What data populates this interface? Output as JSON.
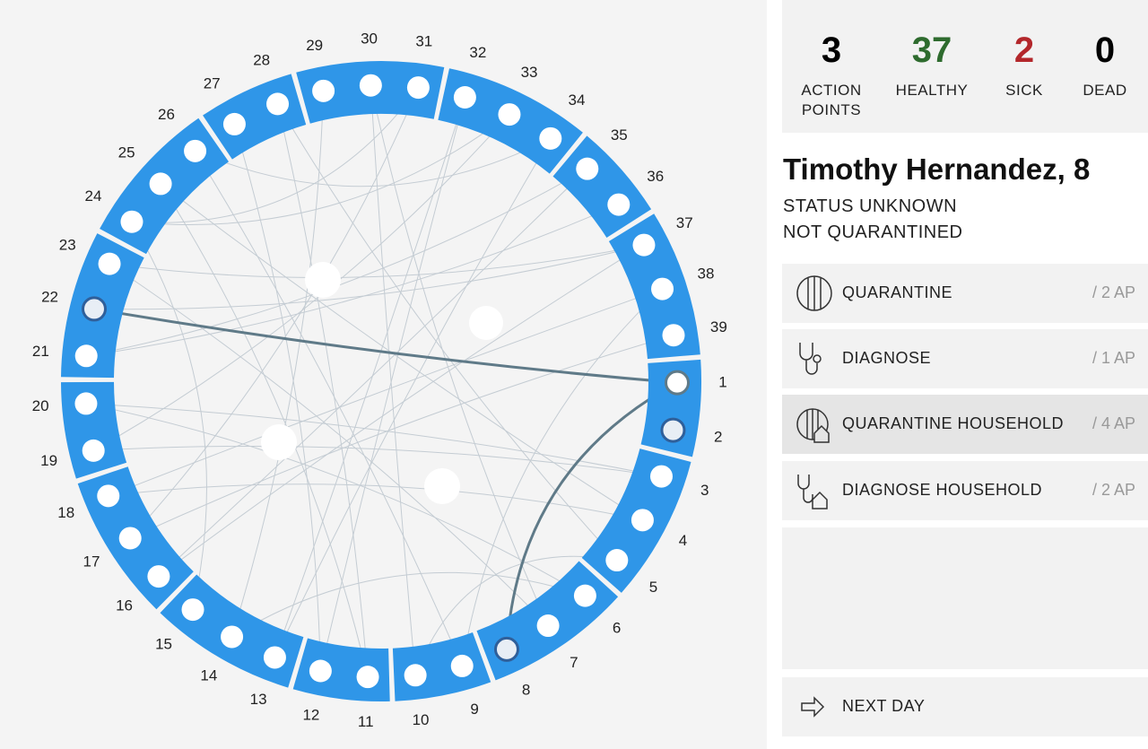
{
  "stats": [
    {
      "value": "3",
      "label": "ACTION POINTS"
    },
    {
      "value": "37",
      "label": "HEALTHY"
    },
    {
      "value": "2",
      "label": "SICK"
    },
    {
      "value": "0",
      "label": "DEAD"
    }
  ],
  "person": {
    "name": "Timothy Hernandez, 8",
    "status": "STATUS UNKNOWN",
    "quarantine": "NOT QUARANTINED"
  },
  "actions": [
    {
      "label": "QUARANTINE",
      "cost": "/ 2 AP"
    },
    {
      "label": "DIAGNOSE",
      "cost": "/ 1 AP"
    },
    {
      "label": "QUARANTINE HOUSEHOLD",
      "cost": "/ 4 AP"
    },
    {
      "label": "DIAGNOSE HOUSEHOLD",
      "cost": "/ 2 AP"
    }
  ],
  "next_day": "NEXT DAY",
  "nodes": [
    "1",
    "2",
    "3",
    "4",
    "5",
    "6",
    "7",
    "8",
    "9",
    "10",
    "11",
    "12",
    "13",
    "14",
    "15",
    "16",
    "17",
    "18",
    "19",
    "20",
    "21",
    "22",
    "23",
    "24",
    "25",
    "26",
    "27",
    "28",
    "29",
    "30",
    "31",
    "32",
    "33",
    "34",
    "35",
    "36",
    "37",
    "38",
    "39"
  ]
}
